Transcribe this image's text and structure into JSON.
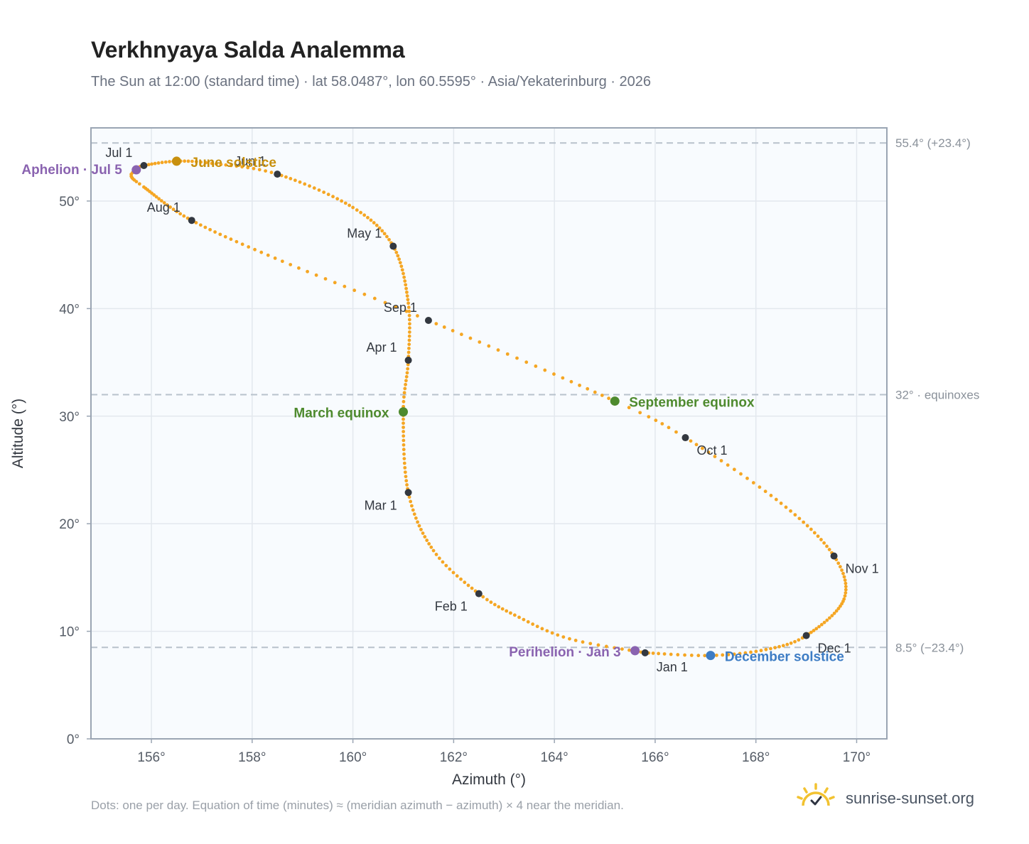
{
  "header": {
    "title": "Verkhnyaya Salda Analemma",
    "subtitle": "The Sun at 12:00 (standard time) · lat 58.0487°, lon 60.5595° · Asia/Yekaterinburg · 2026"
  },
  "footer": {
    "note": "Dots: one per day. Equation of time (minutes) ≈ (meridian azimuth − azimuth) × 4 near the meridian.",
    "brand": "sunrise-sunset.org"
  },
  "colors": {
    "curve": "#f5a623",
    "month_marker": "#333840",
    "june_solstice": "#c8900e",
    "december_solstice": "#3d7cc4",
    "equinox": "#4e8a2e",
    "apsis": "#8a63b0",
    "reference_line": "#b8c2cc",
    "plot_background": "#f8fbfe"
  },
  "chart_data": {
    "type": "scatter",
    "xlabel": "Azimuth (°)",
    "ylabel": "Altitude (°)",
    "xlim": [
      154.8,
      170.6
    ],
    "ylim": [
      0,
      56.8
    ],
    "xticks": [
      156,
      158,
      160,
      162,
      164,
      166,
      168,
      170
    ],
    "yticks": [
      0,
      10,
      20,
      30,
      40,
      50
    ],
    "xtick_labels": [
      "156°",
      "158°",
      "160°",
      "162°",
      "164°",
      "166°",
      "168°",
      "170°"
    ],
    "ytick_labels": [
      "0°",
      "10°",
      "20°",
      "30°",
      "40°",
      "50°"
    ],
    "grid": true,
    "reference_lines": [
      {
        "y": 55.4,
        "label": "55.4° (+23.4°)"
      },
      {
        "y": 32.0,
        "label": "32° · equinoxes"
      },
      {
        "y": 8.5,
        "label": "8.5° (−23.4°)"
      }
    ],
    "path_anchors": [
      {
        "doy": 1,
        "az": 165.8,
        "alt": 8.0
      },
      {
        "doy": 12,
        "az": 164.3,
        "alt": 9.3
      },
      {
        "doy": 22,
        "az": 163.3,
        "alt": 11.3
      },
      {
        "doy": 32,
        "az": 162.5,
        "alt": 13.5
      },
      {
        "doy": 45,
        "az": 161.6,
        "alt": 17.5
      },
      {
        "doy": 60,
        "az": 161.1,
        "alt": 22.9
      },
      {
        "doy": 79,
        "az": 161.0,
        "alt": 30.4
      },
      {
        "doy": 91,
        "az": 161.1,
        "alt": 35.2
      },
      {
        "doy": 105,
        "az": 161.1,
        "alt": 40.5
      },
      {
        "doy": 121,
        "az": 160.8,
        "alt": 45.8
      },
      {
        "doy": 135,
        "az": 160.0,
        "alt": 49.4
      },
      {
        "doy": 152,
        "az": 158.5,
        "alt": 52.5
      },
      {
        "doy": 164,
        "az": 157.2,
        "alt": 53.5
      },
      {
        "doy": 172,
        "az": 156.5,
        "alt": 53.7
      },
      {
        "doy": 182,
        "az": 155.85,
        "alt": 53.3
      },
      {
        "doy": 186,
        "az": 155.7,
        "alt": 52.9
      },
      {
        "doy": 190,
        "az": 155.6,
        "alt": 52.3
      },
      {
        "doy": 196,
        "az": 155.85,
        "alt": 51.3
      },
      {
        "doy": 213,
        "az": 156.8,
        "alt": 48.2
      },
      {
        "doy": 229,
        "az": 158.6,
        "alt": 44.4
      },
      {
        "doy": 244,
        "az": 161.5,
        "alt": 38.9
      },
      {
        "doy": 266,
        "az": 165.2,
        "alt": 31.4
      },
      {
        "doy": 274,
        "az": 166.6,
        "alt": 28.0
      },
      {
        "doy": 290,
        "az": 168.5,
        "alt": 21.9
      },
      {
        "doy": 305,
        "az": 169.55,
        "alt": 17.0
      },
      {
        "doy": 318,
        "az": 169.75,
        "alt": 13.0
      },
      {
        "doy": 335,
        "az": 169.0,
        "alt": 9.6
      },
      {
        "doy": 345,
        "az": 168.2,
        "alt": 8.3
      },
      {
        "doy": 355,
        "az": 167.1,
        "alt": 7.75
      },
      {
        "doy": 366,
        "az": 165.8,
        "alt": 8.0
      }
    ],
    "month_markers": [
      {
        "label": "Jan 1",
        "az": 165.8,
        "alt": 8.0,
        "anchor": "start",
        "dx": 16,
        "dy": 26
      },
      {
        "label": "Feb 1",
        "az": 162.5,
        "alt": 13.5,
        "anchor": "end",
        "dx": -16,
        "dy": 24
      },
      {
        "label": "Mar 1",
        "az": 161.1,
        "alt": 22.9,
        "anchor": "end",
        "dx": -16,
        "dy": 24
      },
      {
        "label": "Apr 1",
        "az": 161.1,
        "alt": 35.2,
        "anchor": "end",
        "dx": -16,
        "dy": -12
      },
      {
        "label": "May 1",
        "az": 160.8,
        "alt": 45.8,
        "anchor": "end",
        "dx": -16,
        "dy": -12
      },
      {
        "label": "Jun 1",
        "az": 158.5,
        "alt": 52.5,
        "anchor": "end",
        "dx": -16,
        "dy": -12
      },
      {
        "label": "Jul 1",
        "az": 155.85,
        "alt": 53.3,
        "anchor": "end",
        "dx": -16,
        "dy": -12
      },
      {
        "label": "Aug 1",
        "az": 156.8,
        "alt": 48.2,
        "anchor": "end",
        "dx": -16,
        "dy": -12
      },
      {
        "label": "Sep 1",
        "az": 161.5,
        "alt": 38.9,
        "anchor": "end",
        "dx": -16,
        "dy": -12
      },
      {
        "label": "Oct 1",
        "az": 166.6,
        "alt": 28.0,
        "anchor": "start",
        "dx": 16,
        "dy": 24
      },
      {
        "label": "Nov 1",
        "az": 169.55,
        "alt": 17.0,
        "anchor": "start",
        "dx": 16,
        "dy": 24
      },
      {
        "label": "Dec 1",
        "az": 169.0,
        "alt": 9.6,
        "anchor": "start",
        "dx": 16,
        "dy": 24
      }
    ],
    "events": [
      {
        "label": "June solstice",
        "az": 156.5,
        "alt": 53.7,
        "color_key": "june_solstice",
        "anchor": "start",
        "dx": 20,
        "dy": 8
      },
      {
        "label": "December solstice",
        "az": 167.1,
        "alt": 7.75,
        "color_key": "december_solstice",
        "anchor": "start",
        "dx": 20,
        "dy": 8
      },
      {
        "label": "March equinox",
        "az": 161.0,
        "alt": 30.4,
        "color_key": "equinox",
        "anchor": "end",
        "dx": -20,
        "dy": 8
      },
      {
        "label": "September equinox",
        "az": 165.2,
        "alt": 31.4,
        "color_key": "equinox",
        "anchor": "start",
        "dx": 20,
        "dy": 8
      },
      {
        "label": "Aphelion · Jul 5",
        "az": 155.7,
        "alt": 52.9,
        "color_key": "apsis",
        "anchor": "end",
        "dx": -20,
        "dy": 6
      },
      {
        "label": "Perihelion · Jan 3",
        "az": 165.6,
        "alt": 8.2,
        "color_key": "apsis",
        "anchor": "end",
        "dx": -20,
        "dy": 8
      }
    ]
  }
}
